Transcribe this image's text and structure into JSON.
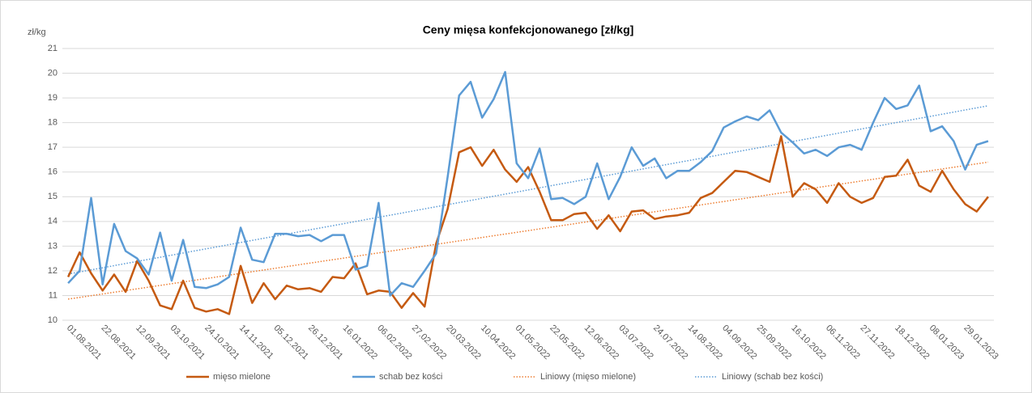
{
  "chart_data": {
    "type": "line",
    "title": "Ceny mięsa konfekcjonowanego [zł/kg]",
    "y_label": "zł/kg",
    "categories": [
      "01.08.2021",
      null,
      null,
      "22.08.2021",
      null,
      null,
      "12.09.2021",
      null,
      null,
      "03.10.2021",
      null,
      null,
      "24.10.2021",
      null,
      null,
      "14.11.2021",
      null,
      null,
      "05.12.2021",
      null,
      null,
      "26.12.2021",
      null,
      null,
      "16.01.2022",
      null,
      null,
      "06.02.2022",
      null,
      null,
      "27.02.2022",
      null,
      null,
      "20.03.2022",
      null,
      null,
      "10.04.2022",
      null,
      null,
      "01.05.2022",
      null,
      null,
      "22.05.2022",
      null,
      null,
      "12.06.2022",
      null,
      null,
      "03.07.2022",
      null,
      null,
      "24.07.2022",
      null,
      null,
      "14.08.2022",
      null,
      null,
      "04.09.2022",
      null,
      null,
      "25.09.2022",
      null,
      null,
      "16.10.2022",
      null,
      null,
      "06.11.2022",
      null,
      null,
      "27.11.2022",
      null,
      null,
      "18.12.2022",
      null,
      null,
      "08.01.2023",
      null,
      null,
      "29.01.2023",
      null,
      null
    ],
    "series": [
      {
        "name": "mięso mielone",
        "color": "#c55a11",
        "values": [
          11.75,
          12.75,
          11.9,
          11.2,
          11.85,
          11.15,
          12.4,
          11.6,
          10.6,
          10.45,
          11.6,
          10.5,
          10.35,
          10.45,
          10.25,
          12.2,
          10.7,
          11.5,
          10.85,
          11.4,
          11.25,
          11.3,
          11.15,
          11.75,
          11.7,
          12.3,
          11.05,
          11.2,
          11.15,
          10.5,
          11.1,
          10.55,
          13.1,
          14.5,
          16.8,
          17.0,
          16.25,
          16.9,
          16.1,
          15.6,
          16.2,
          15.2,
          14.05,
          14.05,
          14.3,
          14.35,
          13.7,
          14.25,
          13.6,
          14.4,
          14.45,
          14.1,
          14.2,
          14.25,
          14.35,
          14.95,
          15.15,
          15.6,
          16.05,
          16.0,
          15.8,
          15.6,
          17.45,
          15.0,
          15.55,
          15.3,
          14.75,
          15.55,
          15.0,
          14.75,
          14.95,
          15.8,
          15.85,
          16.5,
          15.45,
          15.2,
          16.05,
          15.3,
          14.7,
          14.4,
          15.0
        ]
      },
      {
        "name": "schab bez kości",
        "color": "#5b9bd5",
        "values": [
          11.5,
          12.0,
          14.95,
          11.45,
          13.9,
          12.8,
          12.5,
          11.85,
          13.55,
          11.6,
          13.25,
          11.35,
          11.3,
          11.45,
          11.75,
          13.75,
          12.45,
          12.35,
          13.5,
          13.5,
          13.4,
          13.45,
          13.2,
          13.45,
          13.45,
          12.05,
          12.2,
          14.75,
          11.0,
          11.5,
          11.35,
          12.0,
          12.7,
          15.8,
          19.1,
          19.65,
          18.2,
          18.95,
          20.05,
          16.35,
          15.75,
          16.95,
          14.9,
          14.95,
          14.7,
          15.0,
          16.35,
          14.9,
          15.8,
          17.0,
          16.25,
          16.55,
          15.75,
          16.05,
          16.05,
          16.4,
          16.85,
          17.8,
          18.05,
          18.25,
          18.1,
          18.5,
          17.6,
          17.2,
          16.75,
          16.9,
          16.65,
          17.0,
          17.1,
          16.9,
          18.0,
          19.0,
          18.55,
          18.7,
          19.5,
          17.65,
          17.85,
          17.25,
          16.1,
          17.1,
          17.25
        ]
      }
    ],
    "trendlines": [
      {
        "name": "Liniowy (mięso mielone)",
        "color": "#ed7d31",
        "kind": "linear"
      },
      {
        "name": "Liniowy (schab bez kości)",
        "color": "#5b9bd5",
        "kind": "linear"
      }
    ],
    "ylim": [
      10,
      21
    ],
    "yticks": [
      10,
      11,
      12,
      13,
      14,
      15,
      16,
      17,
      18,
      19,
      20,
      21
    ],
    "grid": true,
    "legend": "bottom"
  }
}
